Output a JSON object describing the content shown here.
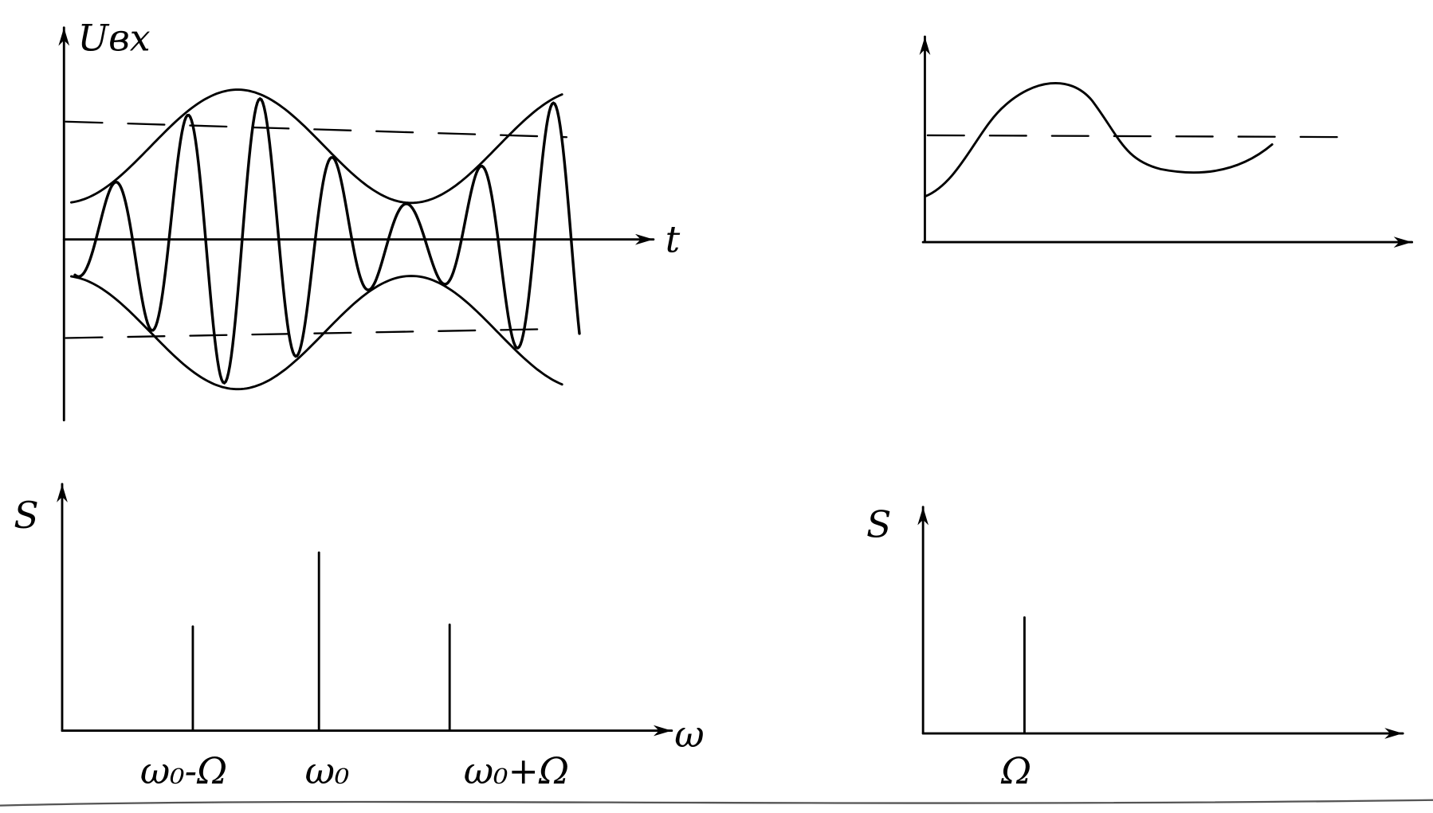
{
  "top_left": {
    "y_label": "Uвх",
    "x_label": "t"
  },
  "bottom_left": {
    "y_label": "S",
    "x_label": "ω",
    "line_labels": [
      "ω₀-Ω",
      "ω₀",
      "ω₀+Ω"
    ]
  },
  "bottom_right": {
    "y_label": "S",
    "line_labels": [
      "Ω"
    ]
  }
}
